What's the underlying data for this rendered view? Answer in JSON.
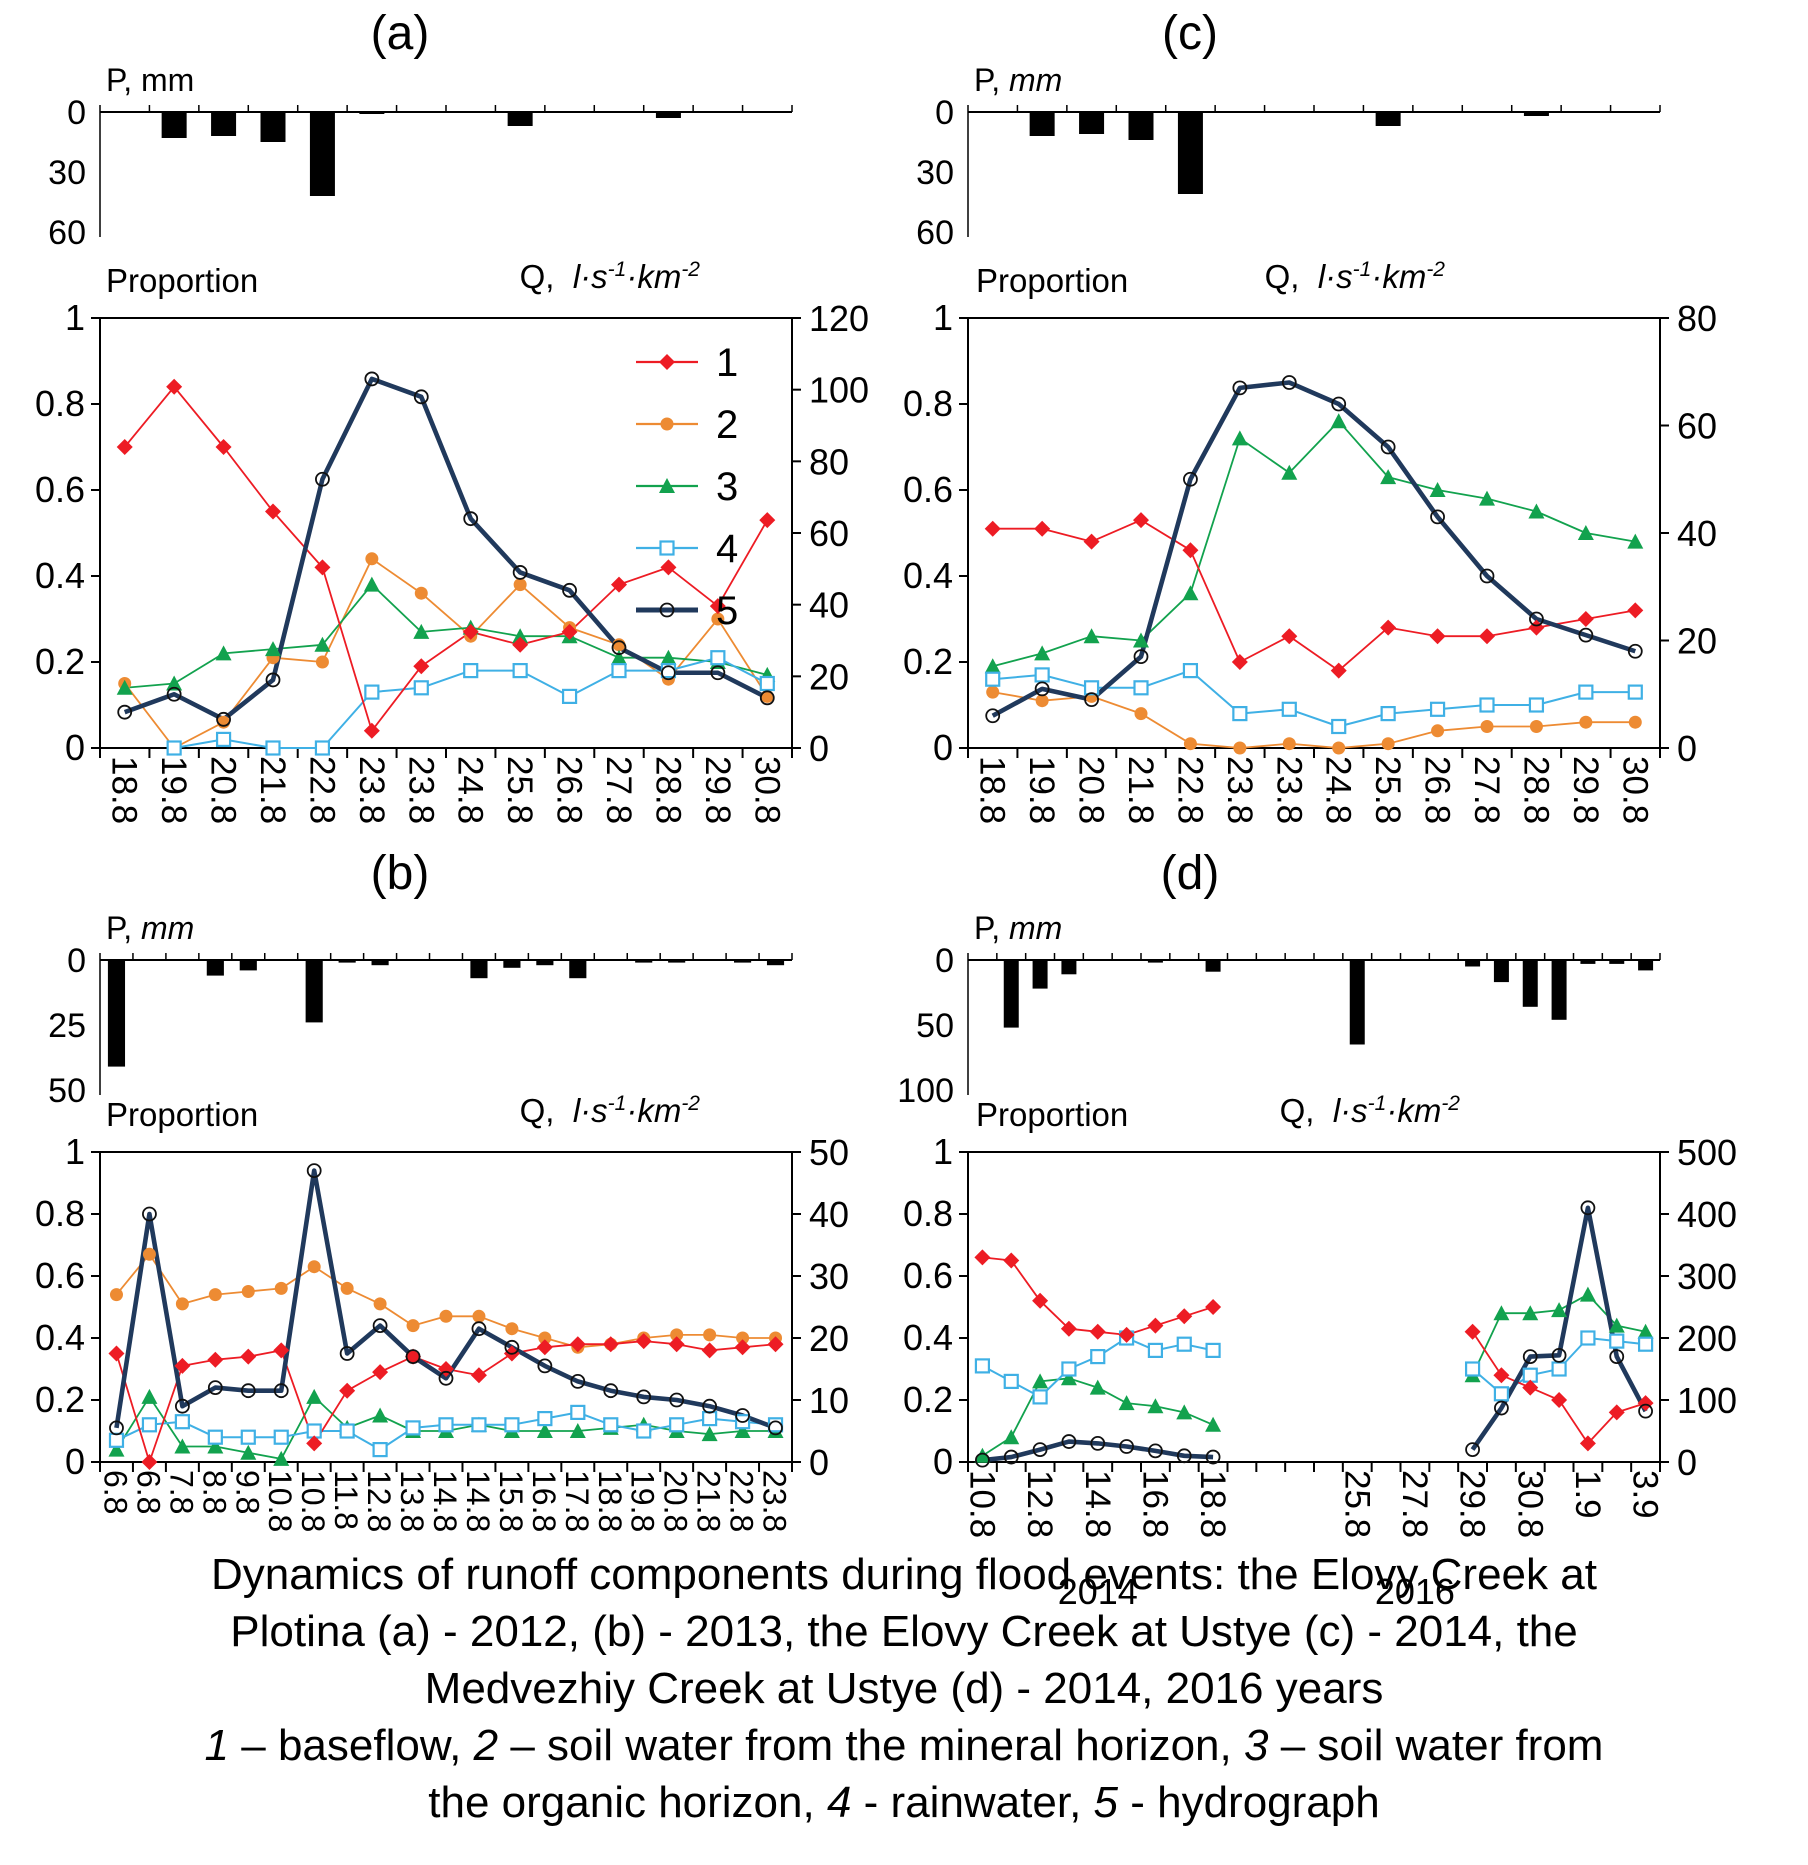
{
  "figure": {
    "caption_lines": [
      "Dynamics of runoff components during flood events: the Elovy Creek at",
      "Plotina (a) - 2012, (b) - 2013, the Elovy Creek at Ustye (c) - 2014, the",
      "Medvezhiy Creek at Ustye (d) - 2014, 2016 years"
    ],
    "caption_rich": [
      [
        {
          "i": true,
          "t": "1"
        },
        {
          "t": " – baseflow, "
        },
        {
          "i": true,
          "t": "2"
        },
        {
          "t": " – soil water from the mineral horizon, "
        },
        {
          "i": true,
          "t": "3"
        },
        {
          "t": " – soil water from"
        }
      ],
      [
        {
          "t": "the organic horizon, "
        },
        {
          "i": true,
          "t": "4"
        },
        {
          "t": " - rainwater, "
        },
        {
          "i": true,
          "t": "5"
        },
        {
          "t": " - hydrograph"
        }
      ]
    ]
  },
  "axis_units": {
    "p_prefix": "P,",
    "p_unit": "mm",
    "proportion": "Proportion",
    "q_prefix": "Q,",
    "q_base": "l·s",
    "q_sup1": "-1",
    "q_mid": "·km",
    "q_sup2": "-2"
  },
  "colors": {
    "baseflow": "#ED1C24",
    "soil_mineral": "#ED8B33",
    "soil_organic": "#12A24E",
    "rainwater": "#3FB0E5",
    "hydrograph": "#20395C",
    "hydrograph_marker": "#111111",
    "precip_bar": "#000000",
    "axis": "#000000"
  },
  "legend": {
    "entries": [
      {
        "series": "baseflow",
        "label": "1"
      },
      {
        "series": "soil_mineral",
        "label": "2"
      },
      {
        "series": "soil_organic",
        "label": "3"
      },
      {
        "series": "rainwater",
        "label": "4"
      },
      {
        "series": "hydrograph",
        "label": "5"
      }
    ]
  },
  "chart_data": {
    "type": "line",
    "panels": [
      {
        "id": "a",
        "title": "(a)",
        "precip": {
          "unit_italic": false,
          "ticks": [
            0,
            30,
            60
          ],
          "max": 60,
          "values": [
            0,
            13,
            12,
            15,
            42,
            1,
            0,
            0,
            7,
            0,
            0,
            3,
            0,
            0
          ]
        },
        "main": {
          "categories": [
            "18.8",
            "19.8",
            "20.8",
            "21.8",
            "22.8",
            "23.8",
            "23.8",
            "24.8",
            "25.8",
            "26.8",
            "27.8",
            "28.8",
            "29.8",
            "30.8"
          ],
          "left_ticks": [
            "1",
            "0.8",
            "0.6",
            "0.4",
            "0.2",
            "0"
          ],
          "right_ticks": [
            0,
            20,
            40,
            60,
            80,
            100,
            120
          ],
          "right_max": 120,
          "show_legend": true,
          "series": {
            "baseflow": [
              0.7,
              0.84,
              0.7,
              0.55,
              0.42,
              0.04,
              0.19,
              0.27,
              0.24,
              0.27,
              0.38,
              0.42,
              0.33,
              0.53
            ],
            "soil_mineral": [
              0.15,
              0.0,
              0.06,
              0.21,
              0.2,
              0.44,
              0.36,
              0.26,
              0.38,
              0.28,
              0.24,
              0.16,
              0.3,
              0.12
            ],
            "soil_organic": [
              0.14,
              0.15,
              0.22,
              0.23,
              0.24,
              0.38,
              0.27,
              0.28,
              0.26,
              0.26,
              0.21,
              0.21,
              0.2,
              0.17
            ],
            "rainwater": [
              null,
              0.0,
              0.02,
              0.0,
              0.0,
              0.13,
              0.14,
              0.18,
              0.18,
              0.12,
              0.18,
              0.18,
              0.21,
              0.15
            ],
            "hydrograph": [
              10,
              15,
              8,
              19,
              75,
              103,
              98,
              64,
              49,
              44,
              28,
              21,
              21,
              14
            ]
          }
        }
      },
      {
        "id": "b",
        "title": "(b)",
        "precip": {
          "unit_italic": true,
          "ticks": [
            0,
            25,
            50
          ],
          "max": 50,
          "values": [
            41,
            0,
            0,
            6,
            4,
            0,
            24,
            1,
            2,
            0,
            0,
            7,
            3,
            2,
            7,
            0,
            1,
            1,
            0,
            1,
            2
          ]
        },
        "main": {
          "categories": [
            "6.8",
            "6.8",
            "7.8",
            "8.8",
            "9.8",
            "10.8",
            "10.8",
            "11.8",
            "12.8",
            "13.8",
            "14.8",
            "14.8",
            "15.8",
            "16.8",
            "17.8",
            "18.8",
            "19.8",
            "20.8",
            "21.8",
            "22.8",
            "23.8"
          ],
          "left_ticks": [
            "1",
            "0.8",
            "0.6",
            "0.4",
            "0.2",
            "0"
          ],
          "right_ticks": [
            0,
            10,
            20,
            30,
            40,
            50
          ],
          "right_max": 50,
          "show_legend": false,
          "series": {
            "baseflow": [
              0.35,
              0.0,
              0.31,
              0.33,
              0.34,
              0.36,
              0.06,
              0.23,
              0.29,
              0.34,
              0.3,
              0.28,
              0.35,
              0.37,
              0.38,
              0.38,
              0.39,
              0.38,
              0.36,
              0.37,
              0.38
            ],
            "soil_mineral": [
              0.54,
              0.67,
              0.51,
              0.54,
              0.55,
              0.56,
              0.63,
              0.56,
              0.51,
              0.44,
              0.47,
              0.47,
              0.43,
              0.4,
              0.37,
              0.38,
              0.4,
              0.41,
              0.41,
              0.4,
              0.4
            ],
            "soil_organic": [
              0.04,
              0.21,
              0.05,
              0.05,
              0.03,
              0.01,
              0.21,
              0.11,
              0.15,
              0.1,
              0.1,
              0.12,
              0.1,
              0.1,
              0.1,
              0.11,
              0.12,
              0.1,
              0.09,
              0.1,
              0.1
            ],
            "rainwater": [
              0.07,
              0.12,
              0.13,
              0.08,
              0.08,
              0.08,
              0.1,
              0.1,
              0.04,
              0.11,
              0.12,
              0.12,
              0.12,
              0.14,
              0.16,
              0.12,
              0.1,
              0.12,
              0.14,
              0.13,
              0.12
            ],
            "hydrograph": [
              5.5,
              40,
              9,
              12,
              11.5,
              11.5,
              47,
              17.5,
              22,
              17,
              13.5,
              21.5,
              18.5,
              15.5,
              13,
              11.5,
              10.5,
              10,
              9,
              7.5,
              5.5
            ]
          }
        }
      },
      {
        "id": "c",
        "title": "(c)",
        "precip": {
          "unit_italic": true,
          "ticks": [
            0,
            30,
            60
          ],
          "max": 60,
          "values": [
            0,
            12,
            11,
            14,
            41,
            0,
            0,
            0,
            7,
            0,
            0,
            2,
            0,
            0
          ]
        },
        "main": {
          "categories": [
            "18.8",
            "19.8",
            "20.8",
            "21.8",
            "22.8",
            "23.8",
            "23.8",
            "24.8",
            "25.8",
            "26.8",
            "27.8",
            "28.8",
            "29.8",
            "30.8"
          ],
          "left_ticks": [
            "1",
            "0.8",
            "0.6",
            "0.4",
            "0.2",
            "0"
          ],
          "right_ticks": [
            0,
            20,
            40,
            60,
            80
          ],
          "right_max": 80,
          "show_legend": false,
          "series": {
            "baseflow": [
              0.51,
              0.51,
              0.48,
              0.53,
              0.46,
              0.2,
              0.26,
              0.18,
              0.28,
              0.26,
              0.26,
              0.28,
              0.3,
              0.32
            ],
            "soil_mineral": [
              0.13,
              0.11,
              0.12,
              0.08,
              0.01,
              0.0,
              0.01,
              0.0,
              0.01,
              0.04,
              0.05,
              0.05,
              0.06,
              0.06
            ],
            "soil_organic": [
              0.19,
              0.22,
              0.26,
              0.25,
              0.36,
              0.72,
              0.64,
              0.76,
              0.63,
              0.6,
              0.58,
              0.55,
              0.5,
              0.48
            ],
            "rainwater": [
              0.16,
              0.17,
              0.14,
              0.14,
              0.18,
              0.08,
              0.09,
              0.05,
              0.08,
              0.09,
              0.1,
              0.1,
              0.13,
              0.13
            ],
            "hydrograph": [
              6,
              11,
              9,
              17,
              50,
              67,
              68,
              64,
              56,
              43,
              32,
              24,
              21,
              18
            ]
          }
        }
      },
      {
        "id": "d",
        "title": "(d)",
        "precip": {
          "unit_italic": true,
          "ticks": [
            0,
            50,
            100
          ],
          "max": 100,
          "values": [
            0,
            52,
            22,
            11,
            0,
            0,
            2,
            0,
            9,
            0,
            0,
            0,
            0,
            65,
            0,
            0,
            0,
            5,
            17,
            36,
            46,
            3,
            3,
            8
          ]
        },
        "main": {
          "categories": [
            "10.8",
            "",
            "12.8",
            "",
            "14.8",
            "",
            "16.8",
            "",
            "18.8",
            "",
            "",
            "",
            "",
            "25.8",
            "",
            "27.8",
            "",
            "29.8",
            "",
            "30.8",
            "",
            "1.9",
            "",
            "3.9"
          ],
          "left_ticks": [
            "1",
            "0.8",
            "0.6",
            "0.4",
            "0.2",
            "0"
          ],
          "right_ticks": [
            0,
            100,
            200,
            300,
            400,
            500
          ],
          "right_max": 500,
          "show_legend": false,
          "year_labels": [
            {
              "text": "2014",
              "index": 4
            },
            {
              "text": "2016",
              "index": 15
            }
          ],
          "series": {
            "baseflow": [
              0.66,
              0.65,
              0.52,
              0.43,
              0.42,
              0.41,
              0.44,
              0.47,
              0.5,
              null,
              null,
              null,
              null,
              null,
              null,
              null,
              null,
              0.42,
              0.28,
              0.24,
              0.2,
              0.06,
              0.16,
              0.19
            ],
            "soil_organic": [
              0.02,
              0.08,
              0.26,
              0.27,
              0.24,
              0.19,
              0.18,
              0.16,
              0.12,
              null,
              null,
              null,
              null,
              null,
              null,
              null,
              null,
              0.28,
              0.48,
              0.48,
              0.49,
              0.54,
              0.44,
              0.42
            ],
            "rainwater": [
              0.31,
              0.26,
              0.21,
              0.3,
              0.34,
              0.4,
              0.36,
              0.38,
              0.36,
              null,
              null,
              null,
              null,
              null,
              null,
              null,
              null,
              0.3,
              0.22,
              0.28,
              0.3,
              0.4,
              0.39,
              0.38
            ],
            "hydrograph": [
              3,
              8,
              20,
              33,
              30,
              25,
              18,
              10,
              8,
              null,
              null,
              null,
              null,
              null,
              null,
              null,
              null,
              20,
              87,
              170,
              172,
              410,
              170,
              82
            ]
          }
        }
      }
    ]
  }
}
